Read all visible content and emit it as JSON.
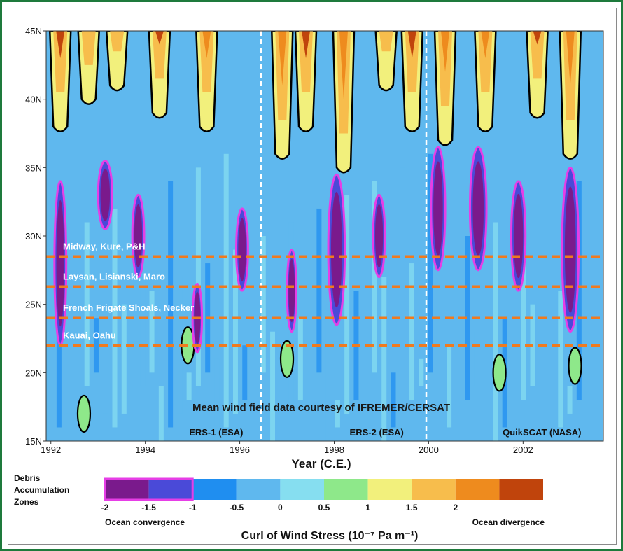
{
  "chart_data": {
    "type": "heatmap",
    "title": "",
    "xlabel": "Year (C.E.)",
    "ylabel": "",
    "x_range": [
      1991.9,
      2003.7
    ],
    "y_range": [
      15,
      45
    ],
    "x_ticks": [
      "1992",
      "1994",
      "1996",
      "1998",
      "2000",
      "2002"
    ],
    "x_tick_values": [
      1992,
      1994,
      1996,
      1998,
      2000,
      2002
    ],
    "y_ticks": [
      "15N",
      "20N",
      "25N",
      "30N",
      "35N",
      "40N",
      "45N"
    ],
    "y_tick_values": [
      15,
      20,
      25,
      30,
      35,
      40,
      45
    ],
    "satellite_breaks": [
      1996.45,
      1999.95
    ],
    "satellite_labels": [
      {
        "text": "ERS-1 (ESA)",
        "x": 1995.5
      },
      {
        "text": "ERS-2 (ESA)",
        "x": 1998.9
      },
      {
        "text": "QuikSCAT (NASA)",
        "x": 2002.4
      }
    ],
    "credit": "Mean wind field data courtesy of IFREMER/CERSAT",
    "island_lines": [
      {
        "label": "Midway, Kure, P&H",
        "lat": 28.5
      },
      {
        "label": "Laysan, Lisianski, Maro",
        "lat": 26.3
      },
      {
        "label": "French Frigate Shoals, Necker",
        "lat": 24.0
      },
      {
        "label": "Kauai, Oahu",
        "lat": 22.0
      }
    ],
    "convergence_bands": [
      {
        "x": 1992.2,
        "lat": 28,
        "width": 0.25,
        "height": 12
      },
      {
        "x": 1993.15,
        "lat": 33,
        "width": 0.3,
        "height": 5
      },
      {
        "x": 1993.85,
        "lat": 30,
        "width": 0.25,
        "height": 6
      },
      {
        "x": 1995.1,
        "lat": 24,
        "width": 0.2,
        "height": 5
      },
      {
        "x": 1996.05,
        "lat": 29,
        "width": 0.25,
        "height": 6
      },
      {
        "x": 1997.1,
        "lat": 26,
        "width": 0.2,
        "height": 6
      },
      {
        "x": 1998.05,
        "lat": 29,
        "width": 0.35,
        "height": 11
      },
      {
        "x": 1998.95,
        "lat": 30,
        "width": 0.25,
        "height": 6
      },
      {
        "x": 2000.2,
        "lat": 32,
        "width": 0.3,
        "height": 9
      },
      {
        "x": 2001.05,
        "lat": 32,
        "width": 0.35,
        "height": 9
      },
      {
        "x": 2001.9,
        "lat": 30,
        "width": 0.3,
        "height": 8
      },
      {
        "x": 2003.0,
        "lat": 29,
        "width": 0.35,
        "height": 12
      }
    ],
    "divergence_bands": [
      {
        "x": 1992.2,
        "top": 38
      },
      {
        "x": 1992.8,
        "top": 40
      },
      {
        "x": 1993.4,
        "top": 41
      },
      {
        "x": 1994.3,
        "top": 39
      },
      {
        "x": 1995.3,
        "top": 38
      },
      {
        "x": 1996.9,
        "top": 36
      },
      {
        "x": 1997.4,
        "top": 38
      },
      {
        "x": 1998.2,
        "top": 35
      },
      {
        "x": 1999.1,
        "top": 41
      },
      {
        "x": 1999.65,
        "top": 38
      },
      {
        "x": 2000.35,
        "top": 37
      },
      {
        "x": 2001.2,
        "top": 38
      },
      {
        "x": 2002.3,
        "top": 39
      },
      {
        "x": 2003.0,
        "top": 36
      }
    ],
    "colorbar": {
      "title": "Curl of Wind Stress (10⁻⁷ Pa m⁻¹)",
      "tick_labels": [
        "-2",
        "-1.5",
        "-1",
        "-0.5",
        "0",
        "0.5",
        "1",
        "1.5",
        "2"
      ],
      "tick_values": [
        -2,
        -1.5,
        -1,
        -0.5,
        0,
        0.5,
        1,
        1.5,
        2
      ],
      "bins": [
        {
          "min": -2,
          "max": -1.5,
          "color": "#7a1a8c"
        },
        {
          "min": -1.5,
          "max": -1,
          "color": "#4a4ad8"
        },
        {
          "min": -1,
          "max": -0.5,
          "color": "#1f8ef0"
        },
        {
          "min": -0.5,
          "max": 0,
          "color": "#5fb8ee"
        },
        {
          "min": 0,
          "max": 0.5,
          "color": "#86def0"
        },
        {
          "min": 0.5,
          "max": 1,
          "color": "#8ee88a"
        },
        {
          "min": 1,
          "max": 1.5,
          "color": "#f2f07c"
        },
        {
          "min": 1.5,
          "max": 2,
          "color": "#f7bd4c"
        },
        {
          "min": 2,
          "max": 2.5,
          "color": "#ee8b1e"
        },
        {
          "min": 2.5,
          "max": 3,
          "color": "#c0440c"
        }
      ],
      "zone_label_lines": [
        "Debris",
        "Accumulation",
        "Zones"
      ],
      "left_note": "Ocean convergence",
      "right_note": "Ocean divergence"
    },
    "colors": {
      "frame": "#1e7a3c",
      "zone_outline": "#e63ee6",
      "island_line": "#f07a1e",
      "contour": "#000000",
      "base_field": "#5fb8ee"
    }
  }
}
